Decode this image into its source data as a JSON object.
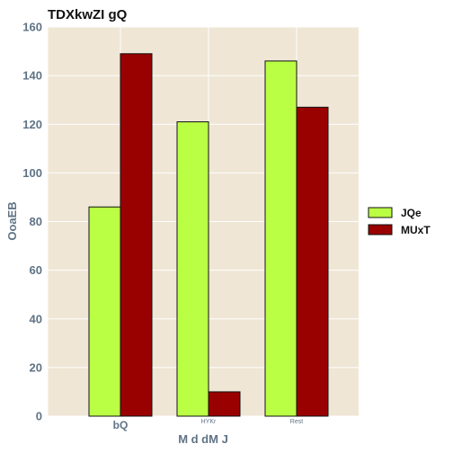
{
  "chart_data": {
    "type": "bar",
    "title": "TDXkwZI gQ",
    "xlabel": "M d dM J",
    "ylabel": "OoaEB",
    "categories": [
      "bQ",
      "HYKr",
      "Rest"
    ],
    "series": [
      {
        "name": "JQe",
        "color": "#bbff44",
        "values": [
          86,
          121,
          146
        ]
      },
      {
        "name": "MUxT",
        "color": "#990000",
        "values": [
          149,
          10,
          127
        ]
      }
    ],
    "ylim": [
      0,
      160
    ],
    "yticks": [
      0,
      20,
      40,
      60,
      80,
      100,
      120,
      140,
      160
    ],
    "grid": true,
    "legend_position": "right",
    "plot_background": "#efe6d5",
    "grid_color": "#ffffff",
    "axis_text_color": "#5f7385",
    "bar_edge_color": "#111111"
  }
}
